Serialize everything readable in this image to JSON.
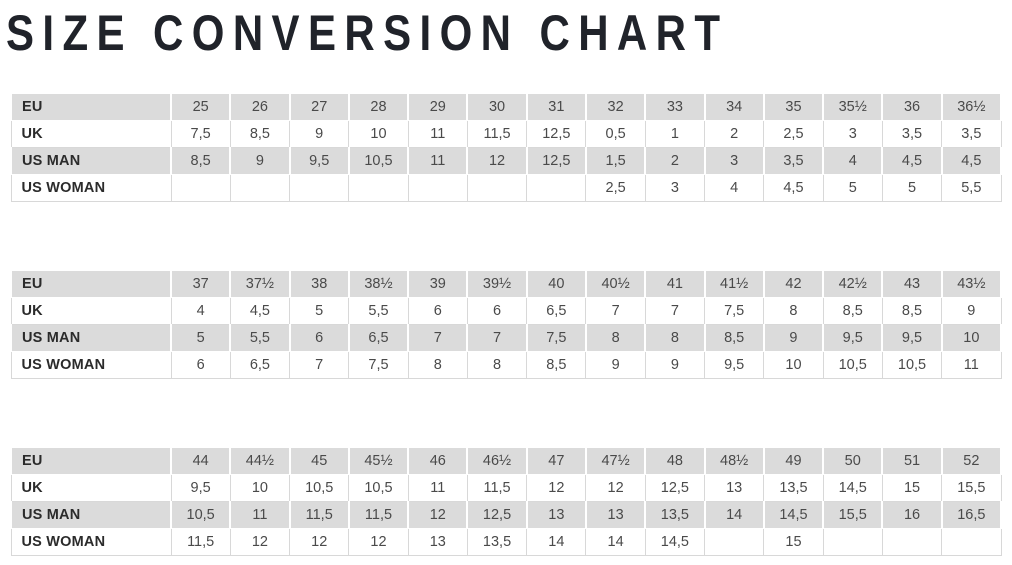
{
  "page": {
    "title": "SIZE CONVERSION CHART"
  },
  "colors": {
    "title_text": "#20232a",
    "row_stripe_bg": "#dbdbdb",
    "row_alt_bg": "#ffffff",
    "cell_text": "#4a4a4a",
    "label_text": "#2b2b2b",
    "cell_border": "#d8d8d8"
  },
  "row_labels": [
    "EU",
    "UK",
    "US MAN",
    "US WOMAN"
  ],
  "chart_data": [
    {
      "type": "table",
      "title": "Size conversion table EU 25 - 36½",
      "rows": [
        {
          "label": "EU",
          "values": [
            "25",
            "26",
            "27",
            "28",
            "29",
            "30",
            "31",
            "32",
            "33",
            "34",
            "35",
            "35½",
            "36",
            "36½"
          ]
        },
        {
          "label": "UK",
          "values": [
            "7,5",
            "8,5",
            "9",
            "10",
            "11",
            "11,5",
            "12,5",
            "0,5",
            "1",
            "2",
            "2,5",
            "3",
            "3,5",
            "3,5"
          ]
        },
        {
          "label": "US MAN",
          "values": [
            "8,5",
            "9",
            "9,5",
            "10,5",
            "11",
            "12",
            "12,5",
            "1,5",
            "2",
            "3",
            "3,5",
            "4",
            "4,5",
            "4,5"
          ]
        },
        {
          "label": "US WOMAN",
          "values": [
            "",
            "",
            "",
            "",
            "",
            "",
            "",
            "2,5",
            "3",
            "4",
            "4,5",
            "5",
            "5",
            "5,5"
          ]
        }
      ]
    },
    {
      "type": "table",
      "title": "Size conversion table EU 37 - 43½",
      "rows": [
        {
          "label": "EU",
          "values": [
            "37",
            "37½",
            "38",
            "38½",
            "39",
            "39½",
            "40",
            "40½",
            "41",
            "41½",
            "42",
            "42½",
            "43",
            "43½"
          ]
        },
        {
          "label": "UK",
          "values": [
            "4",
            "4,5",
            "5",
            "5,5",
            "6",
            "6",
            "6,5",
            "7",
            "7",
            "7,5",
            "8",
            "8,5",
            "8,5",
            "9"
          ]
        },
        {
          "label": "US MAN",
          "values": [
            "5",
            "5,5",
            "6",
            "6,5",
            "7",
            "7",
            "7,5",
            "8",
            "8",
            "8,5",
            "9",
            "9,5",
            "9,5",
            "10"
          ]
        },
        {
          "label": "US WOMAN",
          "values": [
            "6",
            "6,5",
            "7",
            "7,5",
            "8",
            "8",
            "8,5",
            "9",
            "9",
            "9,5",
            "10",
            "10,5",
            "10,5",
            "11"
          ]
        }
      ]
    },
    {
      "type": "table",
      "title": "Size conversion table EU 44 - 52",
      "rows": [
        {
          "label": "EU",
          "values": [
            "44",
            "44½",
            "45",
            "45½",
            "46",
            "46½",
            "47",
            "47½",
            "48",
            "48½",
            "49",
            "50",
            "51",
            "52"
          ]
        },
        {
          "label": "UK",
          "values": [
            "9,5",
            "10",
            "10,5",
            "10,5",
            "11",
            "11,5",
            "12",
            "12",
            "12,5",
            "13",
            "13,5",
            "14,5",
            "15",
            "15,5"
          ]
        },
        {
          "label": "US MAN",
          "values": [
            "10,5",
            "11",
            "11,5",
            "11,5",
            "12",
            "12,5",
            "13",
            "13",
            "13,5",
            "14",
            "14,5",
            "15,5",
            "16",
            "16,5"
          ]
        },
        {
          "label": "US WOMAN",
          "values": [
            "11,5",
            "12",
            "12",
            "12",
            "13",
            "13,5",
            "14",
            "14",
            "14,5",
            "",
            "15",
            "",
            "",
            ""
          ]
        }
      ]
    }
  ]
}
